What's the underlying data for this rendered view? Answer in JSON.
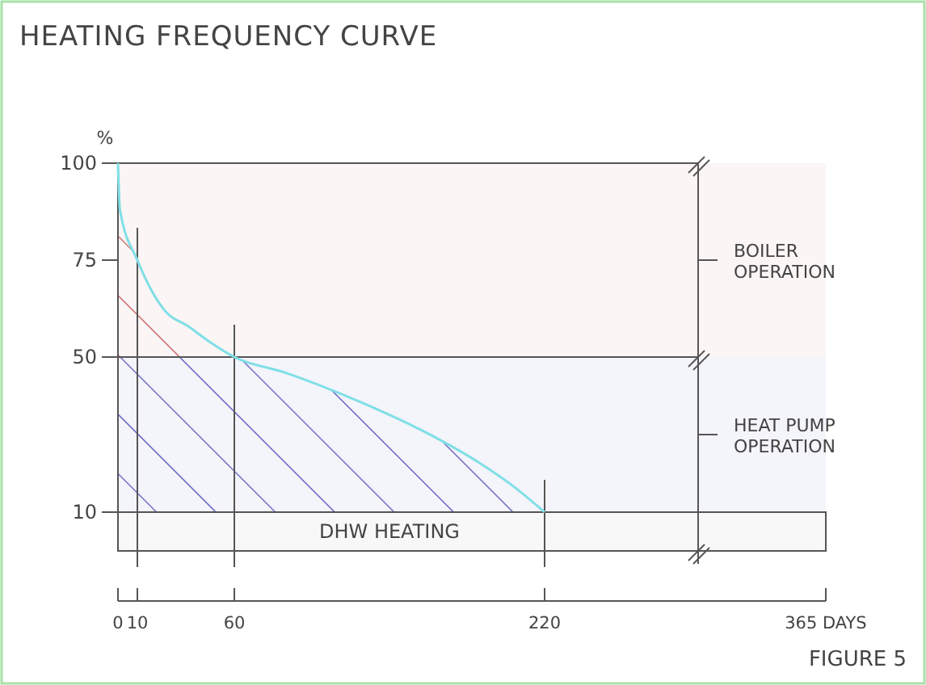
{
  "chart_data": {
    "type": "line",
    "title": "HEATING FREQUENCY CURVE",
    "ylabel": "%",
    "x": [
      0,
      1,
      10,
      17.5,
      25,
      36,
      47,
      60,
      86,
      124,
      157,
      187,
      203,
      220
    ],
    "series": [
      {
        "type": "line",
        "color": "#7fdfe6",
        "values": [
          100,
          88,
          75,
          67,
          61.5,
          58,
          54,
          50,
          46,
          38.6,
          31,
          22.5,
          17,
          10
        ]
      }
    ],
    "xlim": [
      0,
      365
    ],
    "xticks": [
      0,
      10,
      60,
      220,
      {
        "value": 365,
        "label": "365 DAYS"
      }
    ],
    "ylim": [
      0,
      100
    ],
    "yticks": [
      10,
      50,
      75,
      100
    ],
    "ref_lines": [
      {
        "axis": "x",
        "value": 10
      },
      {
        "axis": "x",
        "value": 60
      },
      {
        "axis": "x",
        "value": 220
      },
      {
        "axis": "y",
        "value": 50
      }
    ],
    "bands": [
      {
        "axis": "y",
        "from": 50,
        "to": 100,
        "label": "BOILER OPERATION",
        "color": "#c05050"
      },
      {
        "axis": "y",
        "from": 10,
        "to": 50,
        "label": "HEAT PUMP OPERATION",
        "color": "#4848b8"
      },
      {
        "axis": "y",
        "from": 0,
        "to": 10,
        "label": "DHW HEATING"
      }
    ],
    "annotations": [
      "FIGURE 5"
    ],
    "grid": false
  }
}
